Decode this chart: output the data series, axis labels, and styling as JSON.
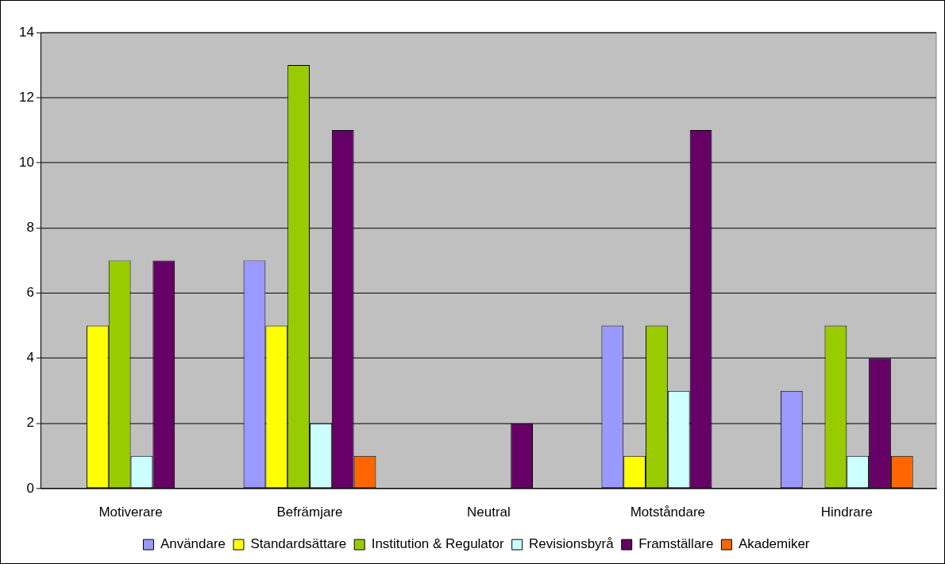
{
  "chart_data": {
    "type": "bar",
    "categories": [
      "Motiverare",
      "Befrämjare",
      "Neutral",
      "Motståndare",
      "Hindrare"
    ],
    "series": [
      {
        "name": "Användare",
        "color": "#9999ff",
        "values": [
          0,
          7,
          0,
          5,
          3
        ]
      },
      {
        "name": "Standardsättare",
        "color": "#ffff00",
        "values": [
          5,
          5,
          0,
          1,
          0
        ]
      },
      {
        "name": "Institution & Regulator",
        "color": "#99cc00",
        "values": [
          7,
          13,
          0,
          5,
          5
        ]
      },
      {
        "name": "Revisionsbyrå",
        "color": "#ccffff",
        "values": [
          1,
          2,
          0,
          3,
          1
        ]
      },
      {
        "name": "Framställare",
        "color": "#660066",
        "values": [
          7,
          11,
          2,
          11,
          4
        ]
      },
      {
        "name": "Akademiker",
        "color": "#ff6600",
        "values": [
          0,
          1,
          0,
          0,
          1
        ]
      }
    ],
    "ylim": [
      0,
      14
    ],
    "yticks": [
      0,
      2,
      4,
      6,
      8,
      10,
      12,
      14
    ],
    "grid": "y",
    "legend": "bottom"
  }
}
